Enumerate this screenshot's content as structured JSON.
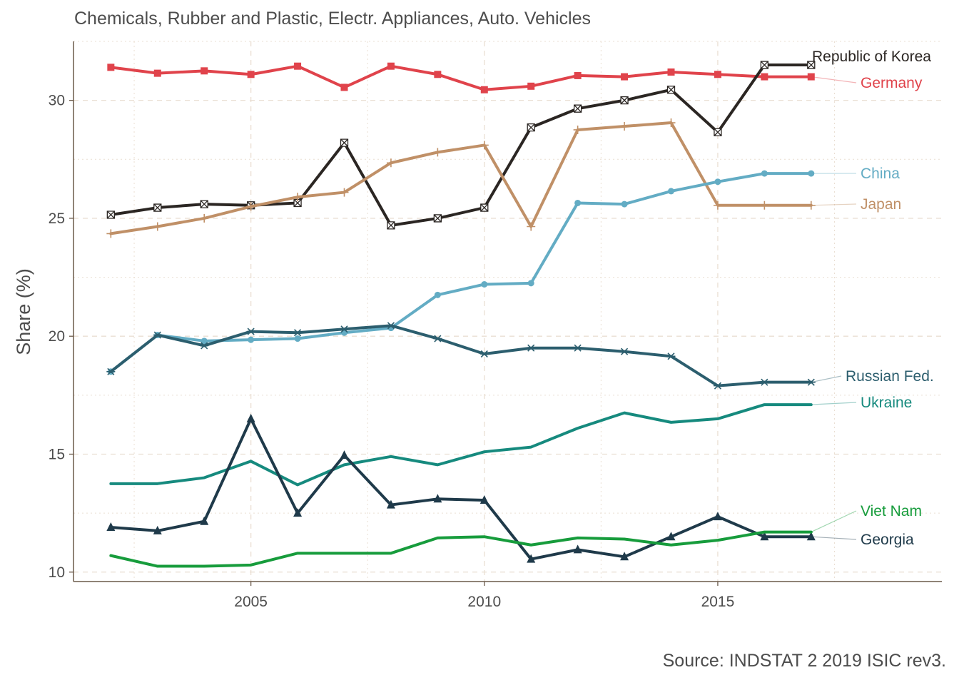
{
  "chart_data": {
    "type": "line",
    "title": "Chemicals, Rubber and Plastic, Electr. Appliances, Auto. Vehicles",
    "caption": "Source: INDSTAT 2 2019 ISIC rev3.",
    "xlabel": "",
    "ylabel": "Share (%)",
    "xlim": [
      2001.2,
      2019.8
    ],
    "ylim": [
      9.6,
      32.5
    ],
    "x_ticks": [
      2005,
      2010,
      2015
    ],
    "y_ticks": [
      10,
      15,
      20,
      25,
      30
    ],
    "grid": true,
    "legend": "direct labels at right end of lines",
    "x": [
      2002,
      2003,
      2004,
      2005,
      2006,
      2007,
      2008,
      2009,
      2010,
      2011,
      2012,
      2013,
      2014,
      2015,
      2016,
      2017
    ],
    "series": [
      {
        "name": "Germany",
        "color": "#e0434b",
        "marker": "square",
        "values": [
          31.4,
          31.15,
          31.25,
          31.1,
          31.45,
          30.55,
          31.45,
          31.1,
          30.45,
          30.6,
          31.05,
          31.0,
          31.2,
          31.1,
          31.0,
          31.0
        ]
      },
      {
        "name": "Republic of Korea",
        "color": "#2b2623",
        "marker": "boxed-x",
        "values": [
          25.15,
          25.45,
          25.6,
          25.55,
          25.65,
          28.2,
          24.7,
          25.0,
          25.45,
          28.85,
          29.65,
          30.0,
          30.45,
          28.65,
          31.5,
          31.5
        ]
      },
      {
        "name": "Japan",
        "color": "#c09067",
        "marker": "plus",
        "values": [
          24.35,
          24.65,
          25.0,
          25.5,
          25.9,
          26.1,
          27.35,
          27.8,
          28.1,
          24.65,
          28.75,
          28.9,
          29.05,
          25.55,
          25.55,
          25.55
        ]
      },
      {
        "name": "China",
        "color": "#63acc4",
        "marker": "circle",
        "values": [
          18.5,
          20.05,
          19.8,
          19.85,
          19.9,
          20.15,
          20.35,
          21.75,
          22.2,
          22.25,
          25.65,
          25.6,
          26.15,
          26.55,
          26.9,
          26.9
        ]
      },
      {
        "name": "Russian Fed.",
        "color": "#2c5e6e",
        "marker": "asterisk",
        "values": [
          18.5,
          20.05,
          19.6,
          20.2,
          20.15,
          20.3,
          20.45,
          19.9,
          19.25,
          19.5,
          19.5,
          19.35,
          19.15,
          17.9,
          18.05,
          18.05
        ]
      },
      {
        "name": "Ukraine",
        "color": "#168a7e",
        "marker": "none",
        "values": [
          13.75,
          13.75,
          14.0,
          14.7,
          13.7,
          14.55,
          14.9,
          14.55,
          15.1,
          15.3,
          16.1,
          16.75,
          16.35,
          16.5,
          17.1,
          17.1
        ]
      },
      {
        "name": "Georgia",
        "color": "#1f3a4a",
        "marker": "triangle",
        "values": [
          11.9,
          11.75,
          12.15,
          16.5,
          12.5,
          14.95,
          12.85,
          13.1,
          13.05,
          10.55,
          10.95,
          10.65,
          11.5,
          12.35,
          11.5,
          11.5
        ]
      },
      {
        "name": "Viet Nam",
        "color": "#179c3c",
        "marker": "none",
        "values": [
          10.7,
          10.25,
          10.25,
          10.3,
          10.8,
          10.8,
          10.8,
          11.45,
          11.5,
          11.15,
          11.45,
          11.4,
          11.15,
          11.35,
          11.7,
          11.7
        ]
      }
    ]
  }
}
